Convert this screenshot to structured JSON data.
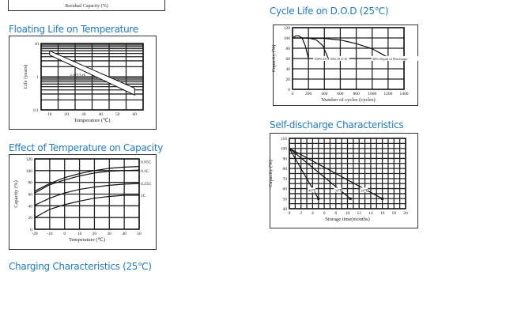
{
  "top_fragment": {
    "label": "Residual Capacity (%)"
  },
  "titles": {
    "floating_life": "Floating Life on Temperature",
    "cycle_life": "Cycle Life on D.O.D (25℃)",
    "self_discharge": "Self-discharge Characteristics",
    "capacity_temp": "Effect of Temperature on Capacity",
    "charging": "Charging Characteristics (25℃)"
  },
  "title_color": "#1f7cc4",
  "chart_data": [
    {
      "id": "floating_life",
      "type": "area",
      "xlabel": "Temperature (℃)",
      "ylabel": "Life (years)",
      "xlim": [
        5,
        65
      ],
      "ylim": [
        0.1,
        10
      ],
      "yscale": "log",
      "grid": true,
      "xticks": [
        10,
        20,
        30,
        40,
        50,
        60
      ],
      "yticks": [
        0.1,
        1,
        10
      ],
      "yticklabels": [
        "0.1",
        "1",
        "10"
      ],
      "band": {
        "upper": [
          [
            10,
            6
          ],
          [
            60,
            0.45
          ]
        ],
        "lower": [
          [
            10,
            4.5
          ],
          [
            60,
            0.28
          ]
        ]
      },
      "annotations": [
        {
          "text": "2.30V/Cell",
          "x": 22,
          "y": 1.05
        }
      ]
    },
    {
      "id": "cycle_life",
      "type": "line",
      "xlabel": "Number of cycles (cycles)",
      "ylabel": "Capacity (%)",
      "xlim": [
        0,
        1400
      ],
      "ylim": [
        0,
        120
      ],
      "grid": true,
      "xticks": [
        0,
        200,
        400,
        600,
        800,
        1000,
        1200,
        1400
      ],
      "yticks": [
        0,
        20,
        40,
        60,
        80,
        100,
        120
      ],
      "series": [
        {
          "name": "100% D.O.D",
          "points": [
            [
              0,
              100
            ],
            [
              40,
              104
            ],
            [
              80,
              104
            ],
            [
              120,
              100
            ],
            [
              160,
              85
            ],
            [
              200,
              60
            ]
          ],
          "label_at": [
            270,
            57
          ]
        },
        {
          "name": "50% D.O.D",
          "points": [
            [
              0,
              100
            ],
            [
              200,
              100
            ],
            [
              300,
              96
            ],
            [
              380,
              85
            ],
            [
              450,
              60
            ]
          ],
          "label_at": [
            470,
            57
          ]
        },
        {
          "name": "30% Depth of Discharge",
          "points": [
            [
              0,
              100
            ],
            [
              400,
              99
            ],
            [
              600,
              96
            ],
            [
              800,
              89
            ],
            [
              1000,
              79
            ],
            [
              1200,
              62
            ]
          ],
          "label_at": [
            1000,
            57
          ]
        }
      ]
    },
    {
      "id": "self_discharge",
      "type": "line",
      "xlabel": "Storage time(months)",
      "ylabel": "Capacity (%)",
      "xlim": [
        0,
        20
      ],
      "ylim": [
        40,
        110
      ],
      "grid": true,
      "xticks": [
        0,
        2,
        4,
        6,
        8,
        10,
        12,
        14,
        16,
        18,
        20
      ],
      "yticks": [
        40,
        50,
        60,
        70,
        80,
        90,
        100,
        110
      ],
      "series": [
        {
          "name": "40℃",
          "points": [
            [
              0,
              100
            ],
            [
              5,
              50
            ]
          ],
          "label_at": [
            3.3,
            57
          ]
        },
        {
          "name": "30℃",
          "points": [
            [
              0,
              100
            ],
            [
              10.5,
              50
            ]
          ],
          "label_at": [
            7.8,
            57
          ]
        },
        {
          "name": "20℃",
          "points": [
            [
              0,
              100
            ],
            [
              16,
              50
            ]
          ],
          "label_at": [
            12.3,
            57
          ]
        }
      ]
    },
    {
      "id": "capacity_temp",
      "type": "line",
      "xlabel": "Temperature (℃)",
      "ylabel": "Capacity (%)",
      "xlim": [
        -20,
        50
      ],
      "ylim": [
        0,
        120
      ],
      "grid": true,
      "xticks": [
        -20,
        -10,
        0,
        10,
        20,
        30,
        40,
        50
      ],
      "yticks": [
        0,
        20,
        40,
        60,
        80,
        100,
        120
      ],
      "series": [
        {
          "name": "0.05C",
          "points": [
            [
              -20,
              65
            ],
            [
              -10,
              78
            ],
            [
              0,
              88
            ],
            [
              10,
              95
            ],
            [
              20,
              100
            ],
            [
              30,
              104
            ],
            [
              40,
              106
            ],
            [
              50,
              107
            ]
          ]
        },
        {
          "name": "0.1C",
          "points": [
            [
              -20,
              62
            ],
            [
              -10,
              76
            ],
            [
              0,
              84
            ],
            [
              10,
              91
            ],
            [
              20,
              96
            ],
            [
              30,
              99
            ],
            [
              40,
              100
            ],
            [
              50,
              101
            ]
          ]
        },
        {
          "name": "0.25C",
          "points": [
            [
              -20,
              41
            ],
            [
              -10,
              53
            ],
            [
              0,
              62
            ],
            [
              10,
              68
            ],
            [
              20,
              72
            ],
            [
              30,
              75
            ],
            [
              40,
              77
            ],
            [
              50,
              78
            ]
          ]
        },
        {
          "name": "1C",
          "points": [
            [
              -20,
              20
            ],
            [
              -10,
              34
            ],
            [
              0,
              42
            ],
            [
              10,
              48
            ],
            [
              20,
              53
            ],
            [
              30,
              56
            ],
            [
              40,
              58
            ],
            [
              50,
              58
            ]
          ]
        }
      ]
    }
  ]
}
